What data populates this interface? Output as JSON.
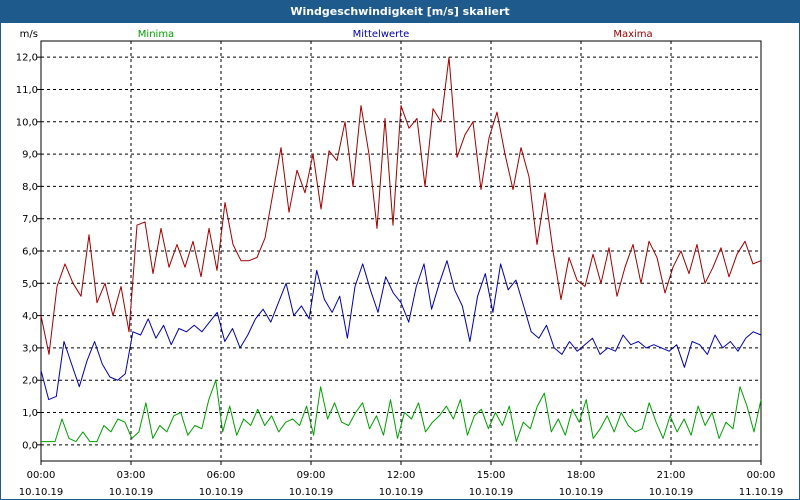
{
  "window": {
    "title": "Windgeschwindigkeit [m/s] skaliert"
  },
  "colors": {
    "min": "#00a000",
    "mean": "#0000b0",
    "max": "#a00000",
    "titlebar": "#1f5a8c"
  },
  "chart_data": {
    "type": "line",
    "title": "Windgeschwindigkeit [m/s] skaliert",
    "ylabel": "m/s",
    "xlabel": "",
    "ylim": [
      -0.5,
      12.5
    ],
    "yticks": [
      "0,0",
      "1,0",
      "2,0",
      "3,0",
      "4,0",
      "5,0",
      "6,0",
      "7,0",
      "8,0",
      "9,0",
      "10,0",
      "11,0",
      "12,0"
    ],
    "xticks": [
      {
        "time": "00:00",
        "date": "10.10.19"
      },
      {
        "time": "03:00",
        "date": "10.10.19"
      },
      {
        "time": "06:00",
        "date": "10.10.19"
      },
      {
        "time": "09:00",
        "date": "10.10.19"
      },
      {
        "time": "12:00",
        "date": "10.10.19"
      },
      {
        "time": "15:00",
        "date": "10.10.19"
      },
      {
        "time": "18:00",
        "date": "10.10.19"
      },
      {
        "time": "21:00",
        "date": "10.10.19"
      },
      {
        "time": "00:00",
        "date": "11.10.19"
      }
    ],
    "xlim_hours": [
      0,
      24
    ],
    "grid": true,
    "series": [
      {
        "name": "Minima",
        "values": [
          0.1,
          0.1,
          0.1,
          0.8,
          0.2,
          0.1,
          0.4,
          0.1,
          0.1,
          0.6,
          0.4,
          0.8,
          0.7,
          0.2,
          0.4,
          1.3,
          0.2,
          0.6,
          0.4,
          0.9,
          1.0,
          0.3,
          0.6,
          0.5,
          1.4,
          2.0,
          0.4,
          1.2,
          0.3,
          0.8,
          0.6,
          1.1,
          0.6,
          0.9,
          0.4,
          0.7,
          0.8,
          0.6,
          1.2,
          0.3,
          1.8,
          0.8,
          1.3,
          0.7,
          0.6,
          1.0,
          1.3,
          0.5,
          0.9,
          0.3,
          1.4,
          0.2,
          1.0,
          0.8,
          1.3,
          0.4,
          0.7,
          0.9,
          1.2,
          0.8,
          1.4,
          0.3,
          0.9,
          1.1,
          0.5,
          1.0,
          0.6,
          1.2,
          0.1,
          0.7,
          0.5,
          1.2,
          1.6,
          0.4,
          0.8,
          0.3,
          1.1,
          0.7,
          1.4,
          0.2,
          0.5,
          0.9,
          0.4,
          1.0,
          0.6,
          0.4,
          0.5,
          1.3,
          0.7,
          0.2,
          0.9,
          0.4,
          0.8,
          0.3,
          1.2,
          0.6,
          1.0,
          0.2,
          0.7,
          0.5,
          1.8,
          1.2,
          0.4,
          1.4
        ],
        "color": "#00a000"
      },
      {
        "name": "Mittelwerte",
        "values": [
          2.3,
          1.4,
          1.5,
          3.2,
          2.5,
          1.8,
          2.6,
          3.2,
          2.5,
          2.1,
          2.0,
          2.2,
          3.5,
          3.4,
          3.9,
          3.3,
          3.7,
          3.1,
          3.6,
          3.5,
          3.7,
          3.5,
          3.8,
          4.1,
          3.2,
          3.6,
          3.0,
          3.4,
          3.9,
          4.2,
          3.8,
          4.4,
          5.0,
          4.0,
          4.3,
          3.9,
          5.4,
          4.5,
          4.1,
          4.6,
          3.3,
          4.9,
          5.6,
          4.8,
          4.1,
          5.2,
          4.7,
          4.4,
          3.8,
          4.9,
          5.6,
          4.2,
          5.0,
          5.7,
          4.8,
          4.3,
          3.2,
          4.6,
          5.3,
          4.1,
          5.6,
          4.8,
          5.1,
          4.3,
          3.5,
          3.3,
          3.7,
          3.0,
          2.8,
          3.2,
          2.9,
          3.1,
          3.3,
          2.8,
          3.0,
          2.9,
          3.4,
          3.1,
          3.2,
          3.0,
          3.1,
          3.0,
          2.9,
          3.1,
          2.4,
          3.2,
          3.1,
          2.8,
          3.4,
          3.0,
          3.2,
          2.9,
          3.3,
          3.5,
          3.4
        ],
        "color": "#0000b0"
      },
      {
        "name": "Maxima",
        "values": [
          4.0,
          2.8,
          4.9,
          5.6,
          5.0,
          4.6,
          6.5,
          4.4,
          5.0,
          4.0,
          4.9,
          3.5,
          6.8,
          6.9,
          5.3,
          6.7,
          5.5,
          6.2,
          5.5,
          6.3,
          5.2,
          6.7,
          5.4,
          7.5,
          6.2,
          5.7,
          5.7,
          5.8,
          6.4,
          7.8,
          9.2,
          7.2,
          8.5,
          7.8,
          9.0,
          7.3,
          9.1,
          8.8,
          10.0,
          8.0,
          10.5,
          9.0,
          6.7,
          10.1,
          6.8,
          10.5,
          9.8,
          10.1,
          8.0,
          10.4,
          10.0,
          12.0,
          8.9,
          9.6,
          10.0,
          7.9,
          9.5,
          10.3,
          9.0,
          7.9,
          9.2,
          8.3,
          6.2,
          7.8,
          6.0,
          4.5,
          5.8,
          5.1,
          4.9,
          5.9,
          5.0,
          6.1,
          4.6,
          5.5,
          6.2,
          5.0,
          6.3,
          5.8,
          4.7,
          5.5,
          6.0,
          5.3,
          6.2,
          5.0,
          5.5,
          6.1,
          5.2,
          5.9,
          6.3,
          5.6,
          5.7
        ],
        "color": "#a00000"
      }
    ]
  }
}
